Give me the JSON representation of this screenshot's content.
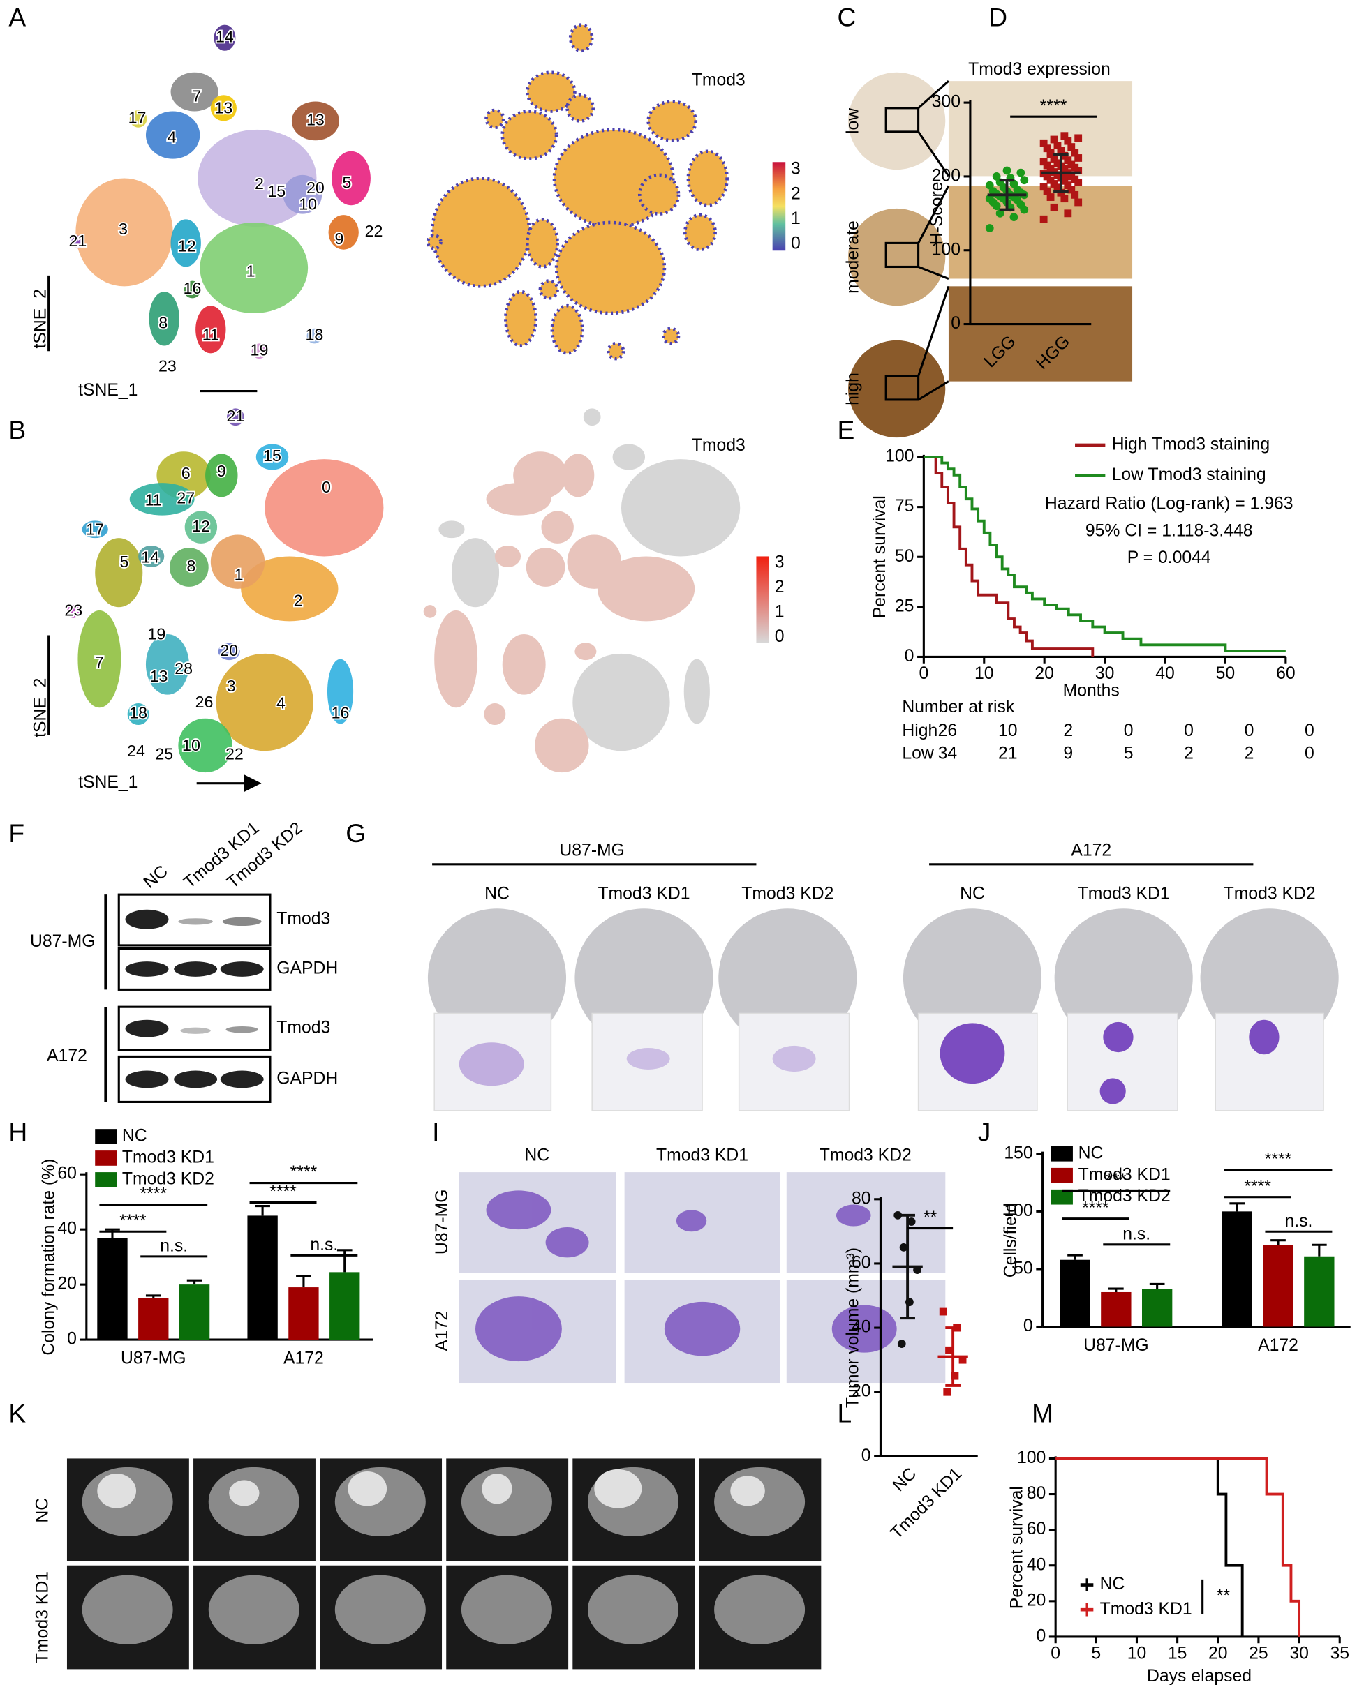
{
  "panel_letters": [
    "A",
    "B",
    "C",
    "D",
    "E",
    "F",
    "G",
    "H",
    "I",
    "J",
    "K",
    "L",
    "M"
  ],
  "panel_A": {
    "cluster_labels": [
      "14",
      "7",
      "17",
      "13",
      "4",
      "13",
      "2",
      "15",
      "20",
      "10",
      "5",
      "21",
      "3",
      "9",
      "22",
      "12",
      "16",
      "1",
      "8",
      "11",
      "19",
      "18",
      "23"
    ],
    "feature_title": "Tmod3",
    "colorbar_ticks": [
      3,
      2,
      1,
      0
    ],
    "x_axis": "tSNE_1",
    "y_axis": "tSNE_2"
  },
  "panel_B": {
    "cluster_labels": [
      "21",
      "6",
      "9",
      "15",
      "11",
      "27",
      "12",
      "0",
      "17",
      "14",
      "5",
      "8",
      "1",
      "2",
      "23",
      "19",
      "20",
      "13",
      "28",
      "3",
      "4",
      "16",
      "26",
      "7",
      "18",
      "10",
      "22",
      "24",
      "25"
    ],
    "feature_title": "Tmod3",
    "colorbar_ticks": [
      3,
      2,
      1,
      0
    ],
    "x_axis": "tSNE_1",
    "y_axis": "tSNE_2"
  },
  "panel_C": {
    "title": "Tmod3 expression",
    "levels": [
      "low",
      "moderate",
      "high"
    ]
  },
  "panel_F": {
    "lanes": [
      "NC",
      "Tmod3 KD1",
      "Tmod3 KD2"
    ],
    "bands": [
      "Tmod3",
      "GAPDH",
      "Tmod3",
      "GAPDH"
    ],
    "cell_lines": [
      "U87-MG",
      "A172"
    ]
  },
  "panel_G": {
    "cell_lines": [
      "U87-MG",
      "A172"
    ],
    "conditions": [
      "NC",
      "Tmod3 KD1",
      "Tmod3 KD2"
    ]
  },
  "panel_I": {
    "conditions": [
      "NC",
      "Tmod3 KD1",
      "Tmod3 KD2"
    ],
    "cell_lines": [
      "U87-MG",
      "A172"
    ]
  },
  "panel_K": {
    "conditions": [
      "NC",
      "Tmod3 KD1"
    ]
  },
  "chart_data": [
    {
      "type": "dot",
      "categories": [
        "LGG",
        "HGG"
      ],
      "ylabel": "H-Score",
      "ylim": [
        0,
        300
      ],
      "yticks": [
        0,
        100,
        200,
        300
      ],
      "colors": [
        "#1a9a1a",
        "#b01515"
      ],
      "markers": [
        "circle",
        "square"
      ],
      "points": [
        [
          130,
          145,
          150,
          155,
          158,
          160,
          162,
          165,
          165,
          168,
          170,
          170,
          172,
          173,
          175,
          175,
          176,
          178,
          180,
          180,
          182,
          185,
          188,
          190,
          192,
          195,
          198,
          200,
          205,
          208
        ],
        [
          142,
          150,
          158,
          165,
          170,
          172,
          175,
          178,
          180,
          182,
          185,
          186,
          188,
          190,
          192,
          194,
          195,
          196,
          198,
          200,
          200,
          202,
          204,
          205,
          206,
          208,
          210,
          210,
          212,
          214,
          215,
          216,
          218,
          220,
          222,
          224,
          225,
          228,
          230,
          232,
          235,
          238,
          240,
          242,
          245,
          248,
          250,
          252,
          255,
          232
        ]
      ],
      "mean": [
        175,
        205
      ],
      "sd": [
        20,
        25
      ],
      "significance": "****"
    },
    {
      "type": "km",
      "xlabel": "Months",
      "ylabel": "Percent survival",
      "xlim": [
        0,
        60
      ],
      "xticks": [
        0,
        10,
        20,
        30,
        40,
        50,
        60
      ],
      "ylim": [
        0,
        100
      ],
      "yticks": [
        0,
        25,
        50,
        75,
        100
      ],
      "series": [
        {
          "name": "High Tmod3 staining",
          "color": "#a3161a",
          "x": [
            0,
            2,
            3,
            4,
            5,
            6,
            7,
            8,
            9,
            12,
            14,
            15,
            16,
            17,
            18,
            28
          ],
          "values": [
            100,
            92,
            85,
            77,
            65,
            54,
            46,
            38,
            31,
            27,
            19,
            15,
            12,
            8,
            4,
            0
          ]
        },
        {
          "name": "Low Tmod3 staining",
          "color": "#1f8a1f",
          "x": [
            0,
            3,
            4,
            5,
            6,
            7,
            8,
            9,
            10,
            11,
            12,
            13,
            14,
            15,
            17,
            18,
            20,
            22,
            24,
            26,
            28,
            30,
            33,
            36,
            40,
            45,
            50,
            55,
            60
          ],
          "values": [
            100,
            97,
            94,
            91,
            85,
            79,
            74,
            68,
            62,
            56,
            50,
            44,
            41,
            35,
            32,
            29,
            26,
            24,
            21,
            18,
            15,
            12,
            9,
            6,
            6,
            6,
            3,
            3,
            3
          ]
        }
      ],
      "annotations": [
        "Hazard Ratio (Log-rank) = 1.963",
        "95% CI = 1.118-3.448",
        "P = 0.0044"
      ],
      "risk_table": {
        "title": "Number at risk",
        "rows": [
          {
            "name": "High",
            "values": [
              26,
              10,
              2,
              0,
              0,
              0,
              0
            ]
          },
          {
            "name": "Low",
            "values": [
              34,
              21,
              9,
              5,
              2,
              2,
              0
            ]
          }
        ]
      }
    },
    {
      "type": "bar",
      "categories": [
        "U87-MG",
        "A172"
      ],
      "ylabel": "Colony formation rate (%)",
      "ylim": [
        0,
        60
      ],
      "yticks": [
        0,
        20,
        40,
        60
      ],
      "series": [
        {
          "name": "NC",
          "color": "#000000",
          "values": [
            37,
            45
          ],
          "errors": [
            3,
            3.5
          ]
        },
        {
          "name": "Tmod3 KD1",
          "color": "#a00000",
          "values": [
            15,
            19
          ],
          "errors": [
            1,
            4
          ]
        },
        {
          "name": "Tmod3 KD2",
          "color": "#0a6e0a",
          "values": [
            20,
            24.5
          ],
          "errors": [
            1.5,
            8
          ]
        }
      ],
      "significance": [
        [
          "****",
          "****",
          "n.s."
        ],
        [
          "****",
          "****",
          "n.s."
        ]
      ]
    },
    {
      "type": "bar",
      "categories": [
        "U87-MG",
        "A172"
      ],
      "ylabel": "Cells/field",
      "ylim": [
        0,
        150
      ],
      "yticks": [
        0,
        50,
        100,
        150
      ],
      "series": [
        {
          "name": "NC",
          "color": "#000000",
          "values": [
            58,
            100
          ],
          "errors": [
            4,
            7
          ]
        },
        {
          "name": "Tmod3 KD1",
          "color": "#a00000",
          "values": [
            30,
            71
          ],
          "errors": [
            3,
            4
          ]
        },
        {
          "name": "Tmod3 KD2",
          "color": "#0a6e0a",
          "values": [
            33,
            61
          ],
          "errors": [
            4,
            10
          ]
        }
      ],
      "significance": [
        [
          "****",
          "***",
          "n.s."
        ],
        [
          "****",
          "****",
          "n.s."
        ]
      ]
    },
    {
      "type": "dot",
      "categories": [
        "NC",
        "Tmod3 KD1"
      ],
      "ylabel": "Tumor volume (mm³)",
      "ylim": [
        0,
        80
      ],
      "yticks": [
        0,
        20,
        40,
        60,
        80
      ],
      "colors": [
        "#111111",
        "#c01010"
      ],
      "markers": [
        "circle",
        "square"
      ],
      "points": [
        [
          75,
          73,
          65,
          58,
          48,
          35
        ],
        [
          45,
          40,
          33,
          30,
          25,
          20
        ]
      ],
      "mean": [
        59,
        31
      ],
      "sd": [
        16,
        9
      ],
      "significance": "**"
    },
    {
      "type": "km",
      "xlabel": "Days elapsed",
      "ylabel": "Percent survival",
      "xlim": [
        0,
        35
      ],
      "xticks": [
        0,
        5,
        10,
        15,
        20,
        25,
        30,
        35
      ],
      "ylim": [
        0,
        100
      ],
      "yticks": [
        0,
        20,
        40,
        60,
        80,
        100
      ],
      "series": [
        {
          "name": "NC",
          "color": "#000000",
          "x": [
            0,
            20,
            21,
            23
          ],
          "values": [
            100,
            80,
            40,
            0
          ]
        },
        {
          "name": "Tmod3 KD1",
          "color": "#d02020",
          "x": [
            0,
            26,
            28,
            29,
            30
          ],
          "values": [
            100,
            80,
            40,
            20,
            0
          ]
        }
      ],
      "significance": "**"
    }
  ]
}
